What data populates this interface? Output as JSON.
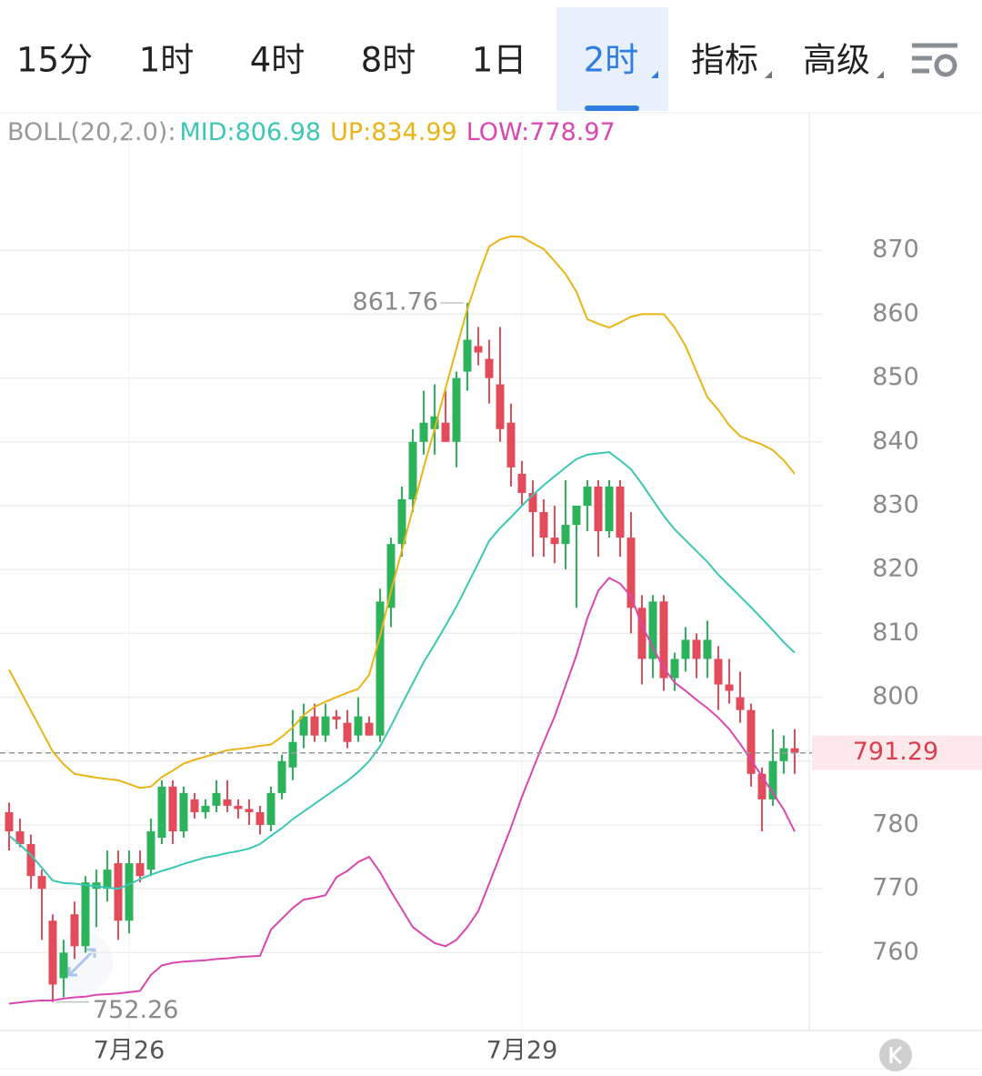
{
  "tabs": [
    "15分",
    "1时",
    "4时",
    "8时",
    "1日",
    "2时",
    "指标",
    "高级"
  ],
  "selected_tab": 5,
  "chart_data": {
    "type": "candlestick",
    "title": "BOLL(20,2.0):",
    "categories": [
      null,
      null,
      null,
      null,
      null,
      null,
      null,
      null,
      null,
      null,
      null,
      "7月26",
      null,
      null,
      null,
      null,
      null,
      null,
      null,
      null,
      null,
      null,
      null,
      null,
      null,
      null,
      null,
      null,
      null,
      null,
      null,
      null,
      null,
      null,
      null,
      null,
      null,
      null,
      null,
      null,
      null,
      null,
      null,
      null,
      null,
      null,
      null,
      "7月29",
      null,
      null,
      null,
      null,
      null,
      null,
      null,
      null,
      null,
      null,
      null,
      null,
      null,
      null,
      null,
      null,
      null,
      null,
      null,
      null,
      null,
      null,
      null,
      null,
      null
    ],
    "open": [
      782,
      779,
      777,
      772,
      765,
      756,
      766,
      761,
      770,
      770,
      774,
      765,
      774,
      773,
      778,
      786,
      779,
      784,
      782,
      783,
      784,
      783,
      782.5,
      782,
      780,
      785,
      789,
      794,
      797,
      794,
      797,
      796,
      794,
      796,
      794,
      814,
      824,
      831,
      840,
      842,
      843,
      840,
      851,
      855,
      853,
      849,
      843,
      835,
      832,
      829,
      825,
      824,
      827,
      830,
      833,
      826,
      833,
      825,
      814,
      806,
      815,
      803,
      806,
      809,
      806,
      806,
      802,
      800,
      798,
      788,
      784,
      790,
      792
    ],
    "high": [
      783.5,
      781,
      778.5,
      773,
      766,
      762,
      768,
      772,
      773,
      776,
      776,
      776,
      776,
      781,
      787,
      787,
      786,
      785,
      784,
      787,
      787,
      784,
      784,
      783,
      786,
      791,
      798,
      799,
      799,
      799,
      798,
      798,
      800,
      797,
      817,
      825,
      833,
      842,
      848,
      849,
      848,
      851,
      861.76,
      858,
      856,
      858,
      846,
      837,
      834,
      831,
      830,
      834,
      830,
      834,
      834,
      834,
      834,
      829,
      816,
      816,
      816,
      807,
      811,
      810,
      812,
      808,
      806,
      804,
      799,
      789,
      795,
      794,
      795
    ],
    "low": [
      776,
      776.5,
      770,
      762,
      752.26,
      753,
      759,
      760,
      764,
      768,
      762,
      763,
      771,
      772,
      777,
      777,
      778,
      781,
      781,
      782,
      782,
      781,
      780,
      778.5,
      779,
      784,
      787,
      792,
      793,
      793,
      795,
      792,
      793,
      794,
      793,
      811,
      822,
      829,
      838,
      838,
      840,
      836,
      848,
      852,
      846,
      840,
      833,
      830,
      822,
      822,
      821,
      820,
      814,
      826,
      822,
      825,
      822,
      810,
      802,
      803,
      801,
      801,
      804,
      803,
      803,
      798,
      799,
      796,
      786,
      779,
      783,
      788,
      788
    ],
    "close": [
      779,
      777,
      772,
      770,
      755,
      760,
      761,
      771,
      771,
      773,
      765,
      774,
      772,
      779,
      786,
      779,
      785,
      782,
      783,
      785,
      783,
      782.5,
      782,
      780,
      785,
      790,
      793,
      797,
      794,
      797,
      796.5,
      793,
      797,
      794,
      815,
      824,
      831,
      840,
      843,
      844,
      840,
      850,
      856,
      854,
      850,
      842,
      836,
      832,
      829,
      825,
      824,
      827,
      830,
      833,
      826,
      833,
      825,
      814,
      806,
      815,
      803,
      806,
      809,
      806,
      809,
      802,
      801,
      798,
      788,
      784,
      790,
      792,
      791.29
    ],
    "up_color": "#2db35c",
    "down_color": "#e14b5a",
    "series": [
      {
        "name": "MID:806.98",
        "color": "#3cc7b4",
        "values": [
          778.3,
          776.9,
          775.3,
          773.3,
          771.3,
          770.9,
          770.8,
          770.6,
          770.4,
          770.2,
          770,
          770.7,
          771.5,
          772.2,
          772.8,
          773.3,
          773.9,
          774.4,
          774.9,
          775.2,
          775.6,
          775.9,
          776.3,
          777,
          778.3,
          779.5,
          780.9,
          782.1,
          783.3,
          784.5,
          785.7,
          786.9,
          788.3,
          790,
          792.3,
          795.5,
          798.9,
          802.2,
          805.5,
          808.3,
          811.2,
          814.2,
          817.6,
          821,
          824.5,
          826.5,
          828.2,
          830,
          831.7,
          833.2,
          834.6,
          836,
          837.3,
          838,
          838.2,
          838.4,
          837.1,
          835.7,
          833.4,
          830.9,
          828.4,
          826.3,
          824.6,
          822.9,
          821.2,
          819.2,
          817.5,
          815.8,
          814.1,
          812.3,
          810.5,
          808.6,
          806.98
        ]
      },
      {
        "name": "UP:834.99",
        "color": "#e8b416",
        "values": [
          804.3,
          801.1,
          797.9,
          794.7,
          791.5,
          789.5,
          788,
          787.7,
          787.4,
          787.2,
          787,
          786.4,
          785.8,
          786,
          787.5,
          788.5,
          789.6,
          790.2,
          790.7,
          791.2,
          791.7,
          791.9,
          792.1,
          792.4,
          792.6,
          793.8,
          795.3,
          797.2,
          798.5,
          799.3,
          800,
          800.7,
          801.3,
          803.5,
          809.6,
          816.6,
          823,
          829.5,
          836,
          842,
          848.4,
          854.6,
          860.8,
          866,
          870.6,
          871.7,
          872.2,
          872.1,
          871.1,
          870.2,
          868.3,
          866.3,
          863.5,
          859.2,
          858.5,
          857.9,
          858.7,
          859.6,
          860,
          860,
          860,
          857.9,
          855,
          851,
          847,
          845,
          842.6,
          840.9,
          840.2,
          839.6,
          838.7,
          837.1,
          834.99
        ]
      },
      {
        "name": "LOW:778.97",
        "color": "#d946b0",
        "values": [
          752,
          752.2,
          752.4,
          752.5,
          752.5,
          752.8,
          753,
          753.1,
          753.4,
          753.5,
          753.6,
          753.8,
          754,
          756.5,
          758,
          758.4,
          758.6,
          758.7,
          758.8,
          759,
          759.1,
          759.3,
          759.4,
          759.5,
          763.6,
          765.3,
          767,
          768.3,
          768.6,
          769,
          771.8,
          772.8,
          774.2,
          775,
          772.6,
          769.6,
          766.8,
          764,
          762.7,
          761.5,
          761,
          762,
          764,
          766.5,
          770.8,
          775.2,
          779.6,
          784.4,
          788.7,
          793,
          797,
          801.8,
          806.6,
          812.4,
          816.7,
          818.7,
          817.8,
          815.8,
          811.3,
          807.8,
          804.6,
          802.3,
          801,
          799.6,
          798.3,
          796.8,
          795,
          792.7,
          790.2,
          787.6,
          785,
          782.4,
          778.97
        ]
      }
    ],
    "ylim": [
      747.8,
      891.4
    ],
    "yticks": [
      760,
      770,
      780,
      790,
      800,
      810,
      820,
      830,
      840,
      850,
      860,
      870
    ],
    "grid": true,
    "last_price": 791.29,
    "max_label": 861.76,
    "min_label": 752.26
  }
}
